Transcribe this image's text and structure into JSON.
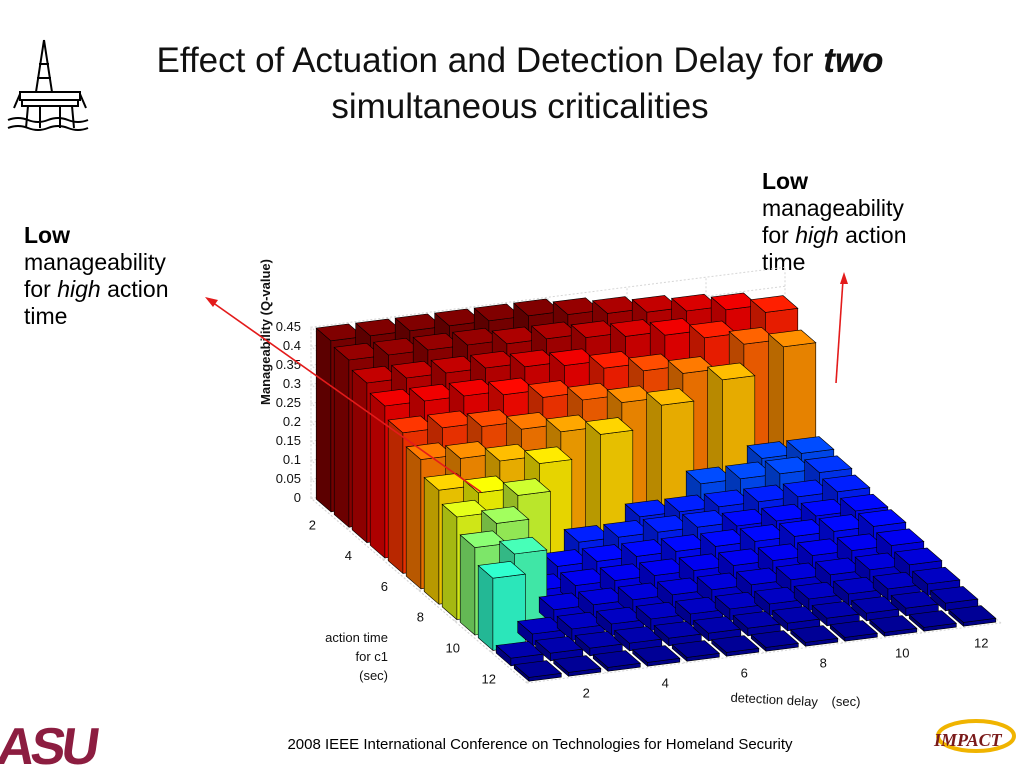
{
  "slide": {
    "title_line1_prefix": "Effect of Actuation and Detection Delay for ",
    "title_line1_emph": "two",
    "title_line2": "simultaneous criticalities",
    "footer": "2008 IEEE International Conference on Technologies for Homeland Security",
    "logo_left_text": "ASU",
    "logo_right_text": "IMPACT"
  },
  "callout_left": {
    "bold": "Low",
    "line2": "manageability",
    "for": "for ",
    "emph": "high",
    "rest": " action",
    "last": "time"
  },
  "callout_right": {
    "bold": "Low",
    "line2": "manageability",
    "for": "for ",
    "emph": "high",
    "rest": " action",
    "last": "time"
  },
  "chart_data": {
    "type": "bar3d",
    "zlabel": "Manageability (Q-value)",
    "ylabel_lines": [
      "action time",
      "for c1",
      "(sec)"
    ],
    "xlabel": "detection delay",
    "xlabel_unit": "(sec)",
    "z_ticks": [
      "0",
      "0.05",
      "0.1",
      "0.15",
      "0.2",
      "0.25",
      "0.3",
      "0.35",
      "0.4",
      "0.45"
    ],
    "zlim": [
      0,
      0.45
    ],
    "action_time_ticks": [
      "2",
      "4",
      "6",
      "8",
      "10",
      "12"
    ],
    "detection_delay_ticks": [
      "2",
      "4",
      "6",
      "8",
      "10",
      "12"
    ],
    "action_time": [
      1,
      2,
      3,
      4,
      5,
      6,
      7,
      8,
      9,
      10,
      11,
      12
    ],
    "detection_delay": [
      1,
      2,
      3,
      4,
      5,
      6,
      7,
      8,
      9,
      10,
      11,
      12
    ],
    "colormap": "jet",
    "grid": true,
    "values_by_action_time": [
      [
        0.45,
        0.45,
        0.45,
        0.45,
        0.45,
        0.45,
        0.44,
        0.43,
        0.42,
        0.41,
        0.4,
        0.38
      ],
      [
        0.44,
        0.44,
        0.44,
        0.44,
        0.43,
        0.43,
        0.42,
        0.41,
        0.4,
        0.38,
        0.35,
        0.33
      ],
      [
        0.42,
        0.42,
        0.42,
        0.42,
        0.41,
        0.4,
        0.38,
        0.36,
        0.34,
        0.31,
        0.09,
        0.09
      ],
      [
        0.4,
        0.4,
        0.4,
        0.39,
        0.37,
        0.35,
        0.33,
        0.31,
        0.09,
        0.09,
        0.09,
        0.08
      ],
      [
        0.37,
        0.37,
        0.36,
        0.34,
        0.32,
        0.3,
        0.07,
        0.07,
        0.07,
        0.07,
        0.07,
        0.07
      ],
      [
        0.34,
        0.33,
        0.31,
        0.29,
        0.07,
        0.07,
        0.07,
        0.07,
        0.06,
        0.06,
        0.06,
        0.06
      ],
      [
        0.3,
        0.28,
        0.26,
        0.06,
        0.06,
        0.06,
        0.06,
        0.06,
        0.06,
        0.06,
        0.06,
        0.06
      ],
      [
        0.27,
        0.24,
        0.05,
        0.05,
        0.05,
        0.05,
        0.05,
        0.05,
        0.05,
        0.05,
        0.05,
        0.05
      ],
      [
        0.23,
        0.2,
        0.04,
        0.04,
        0.04,
        0.04,
        0.04,
        0.04,
        0.04,
        0.04,
        0.04,
        0.04
      ],
      [
        0.19,
        0.03,
        0.03,
        0.03,
        0.03,
        0.03,
        0.03,
        0.03,
        0.03,
        0.03,
        0.03,
        0.03
      ],
      [
        0.02,
        0.02,
        0.02,
        0.02,
        0.02,
        0.02,
        0.02,
        0.02,
        0.02,
        0.02,
        0.02,
        0.02
      ],
      [
        0.01,
        0.01,
        0.01,
        0.01,
        0.01,
        0.01,
        0.01,
        0.01,
        0.01,
        0.01,
        0.01,
        0.01
      ]
    ]
  }
}
